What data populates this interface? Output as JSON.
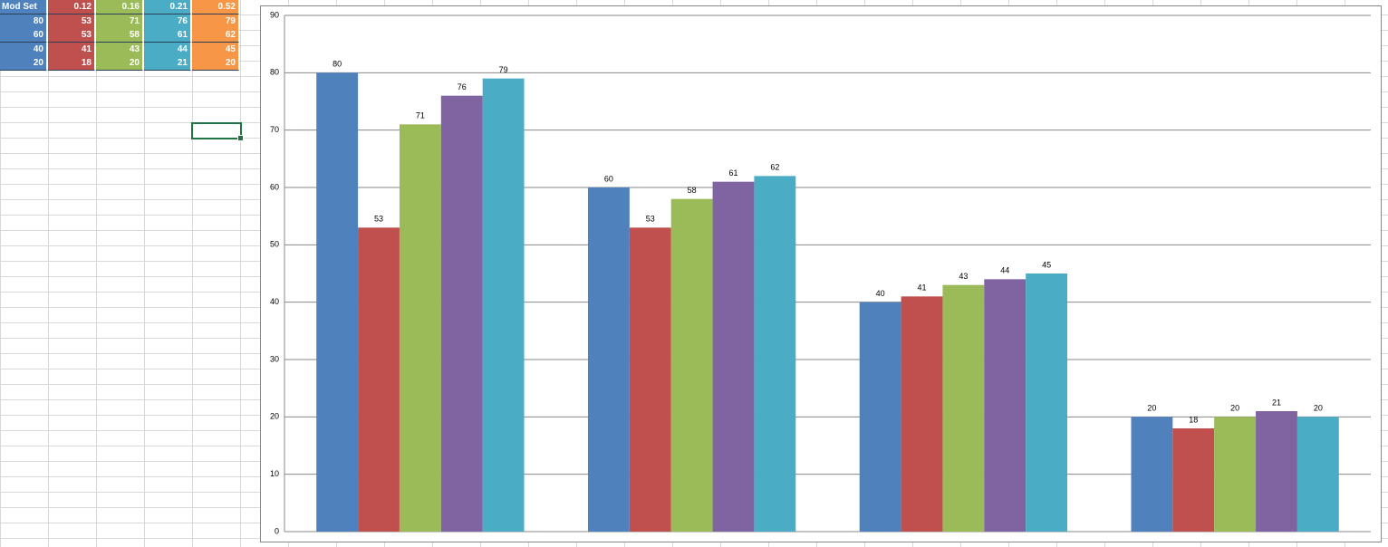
{
  "table": {
    "header": [
      "Mod Set",
      "0.12",
      "0.16",
      "0.21",
      "0.52"
    ],
    "rows": [
      [
        80,
        53,
        71,
        76,
        79
      ],
      [
        60,
        53,
        58,
        61,
        62
      ],
      [
        40,
        41,
        43,
        44,
        45
      ],
      [
        20,
        18,
        20,
        21,
        20
      ]
    ]
  },
  "chart_data": {
    "type": "bar",
    "categories": [
      null,
      null,
      null,
      null
    ],
    "series": [
      {
        "color": "#4f81bd",
        "values": [
          80,
          60,
          40,
          20
        ]
      },
      {
        "color": "#c0504d",
        "values": [
          53,
          53,
          41,
          18
        ]
      },
      {
        "color": "#9bbb59",
        "values": [
          71,
          58,
          43,
          20
        ]
      },
      {
        "color": "#8064a2",
        "values": [
          76,
          61,
          44,
          21
        ]
      },
      {
        "color": "#4bacc6",
        "values": [
          79,
          62,
          45,
          20
        ]
      }
    ],
    "ylim": [
      0,
      90
    ],
    "yticks": [
      0,
      10,
      20,
      30,
      40,
      50,
      60,
      70,
      80,
      90
    ],
    "grid": true,
    "data_labels": true
  }
}
